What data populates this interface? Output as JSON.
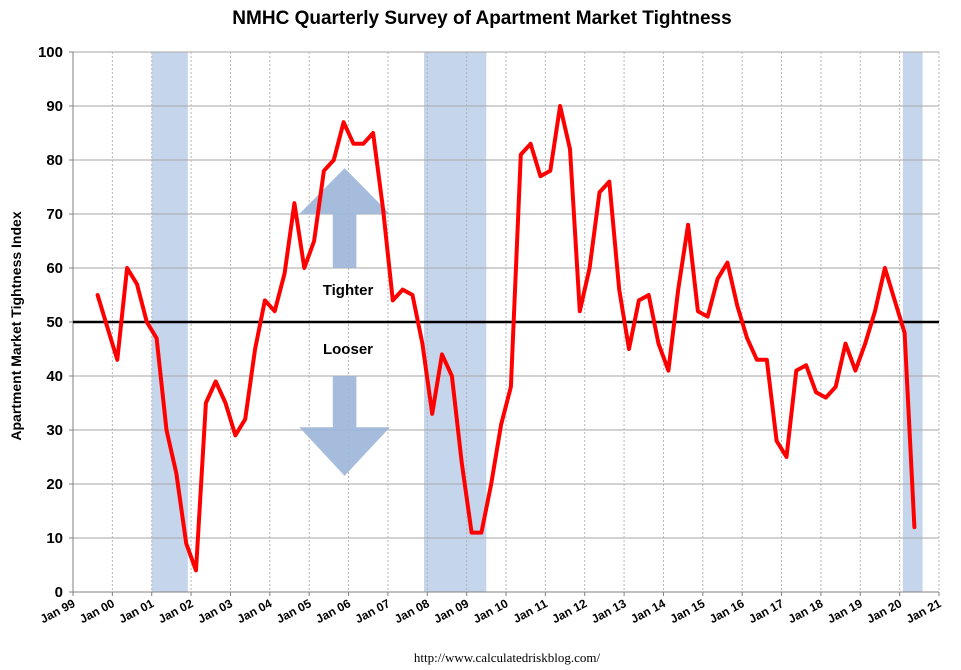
{
  "chart_data": {
    "type": "line",
    "title": "NMHC Quarterly Survey of Apartment Market Tightness",
    "ylabel": "Apartment Market Tightness Index",
    "xlabel": "",
    "ylim": [
      0,
      100
    ],
    "yticks": [
      0,
      10,
      20,
      30,
      40,
      50,
      60,
      70,
      80,
      90,
      100
    ],
    "xlim_years": [
      1999.0,
      2021.0
    ],
    "x_tick_labels": [
      "Jan 99",
      "Jan 00",
      "Jan 01",
      "Jan 02",
      "Jan 03",
      "Jan 04",
      "Jan 05",
      "Jan 06",
      "Jan 07",
      "Jan 08",
      "Jan 09",
      "Jan 10",
      "Jan 11",
      "Jan 12",
      "Jan 13",
      "Jan 14",
      "Jan 15",
      "Jan 16",
      "Jan 17",
      "Jan 18",
      "Jan 19",
      "Jan 20",
      "Jan 21"
    ],
    "reference_line": 50,
    "recessions": [
      [
        2001.0,
        2001.917
      ],
      [
        2007.917,
        2009.5
      ],
      [
        2020.083,
        2020.583
      ]
    ],
    "series": [
      {
        "name": "Apartment Market Tightness Index",
        "color": "#ff0000",
        "x": [
          1999.625,
          1999.875,
          2000.125,
          2000.375,
          2000.625,
          2000.875,
          2001.125,
          2001.375,
          2001.625,
          2001.875,
          2002.125,
          2002.375,
          2002.625,
          2002.875,
          2003.125,
          2003.375,
          2003.625,
          2003.875,
          2004.125,
          2004.375,
          2004.625,
          2004.875,
          2005.125,
          2005.375,
          2005.625,
          2005.875,
          2006.125,
          2006.375,
          2006.625,
          2006.875,
          2007.125,
          2007.375,
          2007.625,
          2007.875,
          2008.125,
          2008.375,
          2008.625,
          2008.875,
          2009.125,
          2009.375,
          2009.625,
          2009.875,
          2010.125,
          2010.375,
          2010.625,
          2010.875,
          2011.125,
          2011.375,
          2011.625,
          2011.875,
          2012.125,
          2012.375,
          2012.625,
          2012.875,
          2013.125,
          2013.375,
          2013.625,
          2013.875,
          2014.125,
          2014.375,
          2014.625,
          2014.875,
          2015.125,
          2015.375,
          2015.625,
          2015.875,
          2016.125,
          2016.375,
          2016.625,
          2016.875,
          2017.125,
          2017.375,
          2017.625,
          2017.875,
          2018.125,
          2018.375,
          2018.625,
          2018.875,
          2019.125,
          2019.375,
          2019.625,
          2019.875,
          2020.125,
          2020.375
        ],
        "values": [
          55,
          49,
          43,
          60,
          57,
          50,
          47,
          30,
          22,
          9,
          4,
          35,
          39,
          35,
          29,
          32,
          45,
          54,
          52,
          59,
          72,
          60,
          65,
          78,
          80,
          87,
          83,
          83,
          85,
          71,
          54,
          56,
          55,
          46,
          33,
          44,
          40,
          24,
          11,
          11,
          20,
          31,
          38,
          81,
          83,
          77,
          78,
          90,
          82,
          52,
          60,
          74,
          76,
          56,
          45,
          54,
          55,
          46,
          41,
          56,
          68,
          52,
          51,
          58,
          61,
          53,
          47,
          43,
          43,
          28,
          25,
          41,
          42,
          37,
          36,
          38,
          46,
          41,
          46,
          52,
          60,
          54,
          48,
          12
        ]
      }
    ],
    "annotations": {
      "tighter": "Tighter",
      "looser": "Looser"
    },
    "source": "http://www.calculatedriskblog.com/",
    "colors": {
      "line": "#ff0000",
      "recession": "#c5d6ec",
      "arrow": "#9cb5d8",
      "grid": "#a6a6a6",
      "reference": "#000000"
    }
  }
}
